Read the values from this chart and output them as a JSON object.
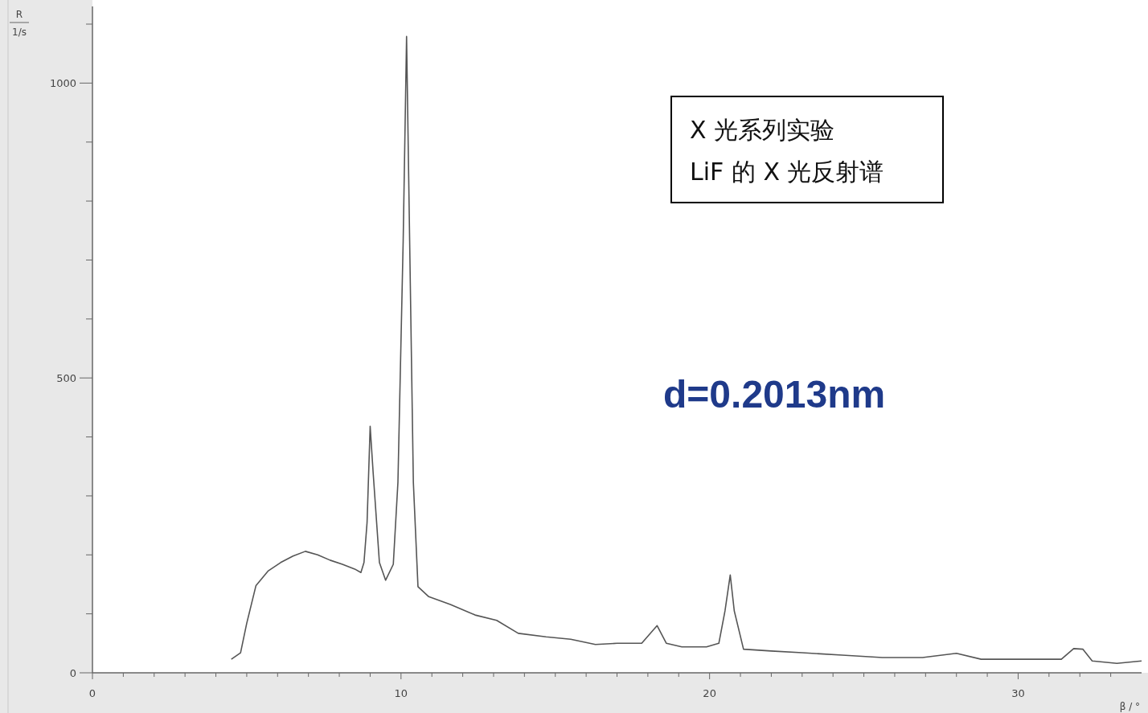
{
  "chart_data": {
    "type": "line",
    "xlabel": "β / °",
    "ylabel": "R\n1/s",
    "annotations": [
      "X 光系列实验\nLiF 的 X 光反射谱",
      "d=0.2013nm"
    ],
    "x": [
      4.5,
      4.8,
      5.0,
      5.3,
      5.7,
      6.1,
      6.5,
      6.9,
      7.3,
      7.7,
      8.1,
      8.5,
      8.7,
      8.8,
      8.9,
      9.0,
      9.1,
      9.3,
      9.5,
      9.75,
      9.9,
      10.07,
      10.18,
      10.28,
      10.4,
      10.55,
      10.9,
      11.6,
      12.4,
      13.1,
      13.8,
      14.7,
      15.5,
      16.3,
      17.0,
      17.8,
      18.3,
      18.6,
      19.1,
      19.9,
      20.3,
      20.5,
      20.67,
      20.8,
      21.1,
      22.0,
      23.0,
      24.3,
      25.6,
      26.9,
      28.0,
      28.8,
      30.3,
      31.4,
      31.8,
      32.1,
      32.4,
      33.2,
      34.0
    ],
    "series": [
      {
        "color": "#555555",
        "values": [
          23,
          34,
          84,
          148,
          173,
          187,
          198,
          206,
          200,
          191,
          184,
          176,
          170,
          187,
          255,
          418,
          337,
          187,
          157,
          184,
          323,
          732,
          1079,
          732,
          323,
          146,
          129,
          116,
          98,
          89,
          67,
          61,
          57,
          48,
          50,
          50,
          80,
          50,
          44,
          44,
          50,
          105,
          166,
          105,
          40,
          37,
          34,
          30,
          26,
          26,
          33,
          23,
          23,
          23,
          41,
          40,
          20,
          16,
          20
        ]
      }
    ],
    "xlim": [
      0,
      34
    ],
    "xticks": [
      0,
      {
        "value": 1,
        "label": null
      },
      {
        "value": 2,
        "label": null
      },
      {
        "value": 3,
        "label": null
      },
      {
        "value": 4,
        "label": null
      },
      {
        "value": 5,
        "label": null
      },
      {
        "value": 6,
        "label": null
      },
      {
        "value": 7,
        "label": null
      },
      {
        "value": 8,
        "label": null
      },
      {
        "value": 9,
        "label": null
      },
      10,
      {
        "value": 11,
        "label": null
      },
      {
        "value": 12,
        "label": null
      },
      {
        "value": 13,
        "label": null
      },
      {
        "value": 14,
        "label": null
      },
      {
        "value": 15,
        "label": null
      },
      {
        "value": 16,
        "label": null
      },
      {
        "value": 17,
        "label": null
      },
      {
        "value": 18,
        "label": null
      },
      {
        "value": 19,
        "label": null
      },
      20,
      {
        "value": 21,
        "label": null
      },
      {
        "value": 22,
        "label": null
      },
      {
        "value": 23,
        "label": null
      },
      {
        "value": 24,
        "label": null
      },
      {
        "value": 25,
        "label": null
      },
      {
        "value": 26,
        "label": null
      },
      {
        "value": 27,
        "label": null
      },
      {
        "value": 28,
        "label": null
      },
      {
        "value": 29,
        "label": null
      },
      30,
      {
        "value": 31,
        "label": null
      },
      {
        "value": 32,
        "label": null
      },
      {
        "value": 33,
        "label": null
      }
    ],
    "ylim": [
      0,
      1130
    ],
    "yticks": [
      0,
      {
        "value": 100,
        "label": null
      },
      {
        "value": 200,
        "label": null
      },
      {
        "value": 300,
        "label": null
      },
      {
        "value": 400,
        "label": null
      },
      500,
      {
        "value": 600,
        "label": null
      },
      {
        "value": 700,
        "label": null
      },
      {
        "value": 800,
        "label": null
      },
      {
        "value": 900,
        "label": null
      },
      1000,
      {
        "value": 1100,
        "label": null
      }
    ],
    "grid": false,
    "marker": "none",
    "line_style": "solid"
  }
}
